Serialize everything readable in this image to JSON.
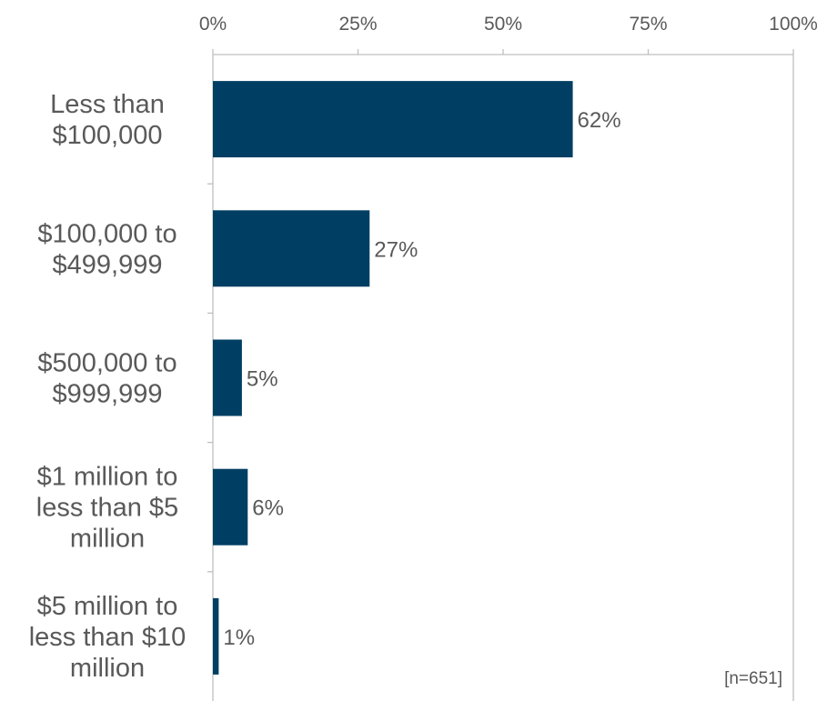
{
  "chart_data": {
    "type": "bar",
    "orientation": "horizontal",
    "categories": [
      [
        "Less than",
        "$100,000"
      ],
      [
        "$100,000 to",
        "$499,999"
      ],
      [
        "$500,000 to",
        "$999,999"
      ],
      [
        "$1 million to",
        "less than $5",
        "million"
      ],
      [
        "$5 million to",
        "less than $10",
        "million"
      ]
    ],
    "values": [
      62,
      27,
      5,
      6,
      1
    ],
    "value_labels": [
      "62%",
      "27%",
      "5%",
      "6%",
      "1%"
    ],
    "x_ticks": [
      "0%",
      "25%",
      "50%",
      "75%",
      "100%"
    ],
    "xlim": [
      0,
      100
    ],
    "x_axis_position": "top",
    "grid": "outer frame only",
    "title": "",
    "xlabel": "",
    "ylabel": "",
    "note": "[n=651]",
    "colors": {
      "bar": "#003F63",
      "axis": "#BFBFBF",
      "text": "#595959"
    }
  }
}
